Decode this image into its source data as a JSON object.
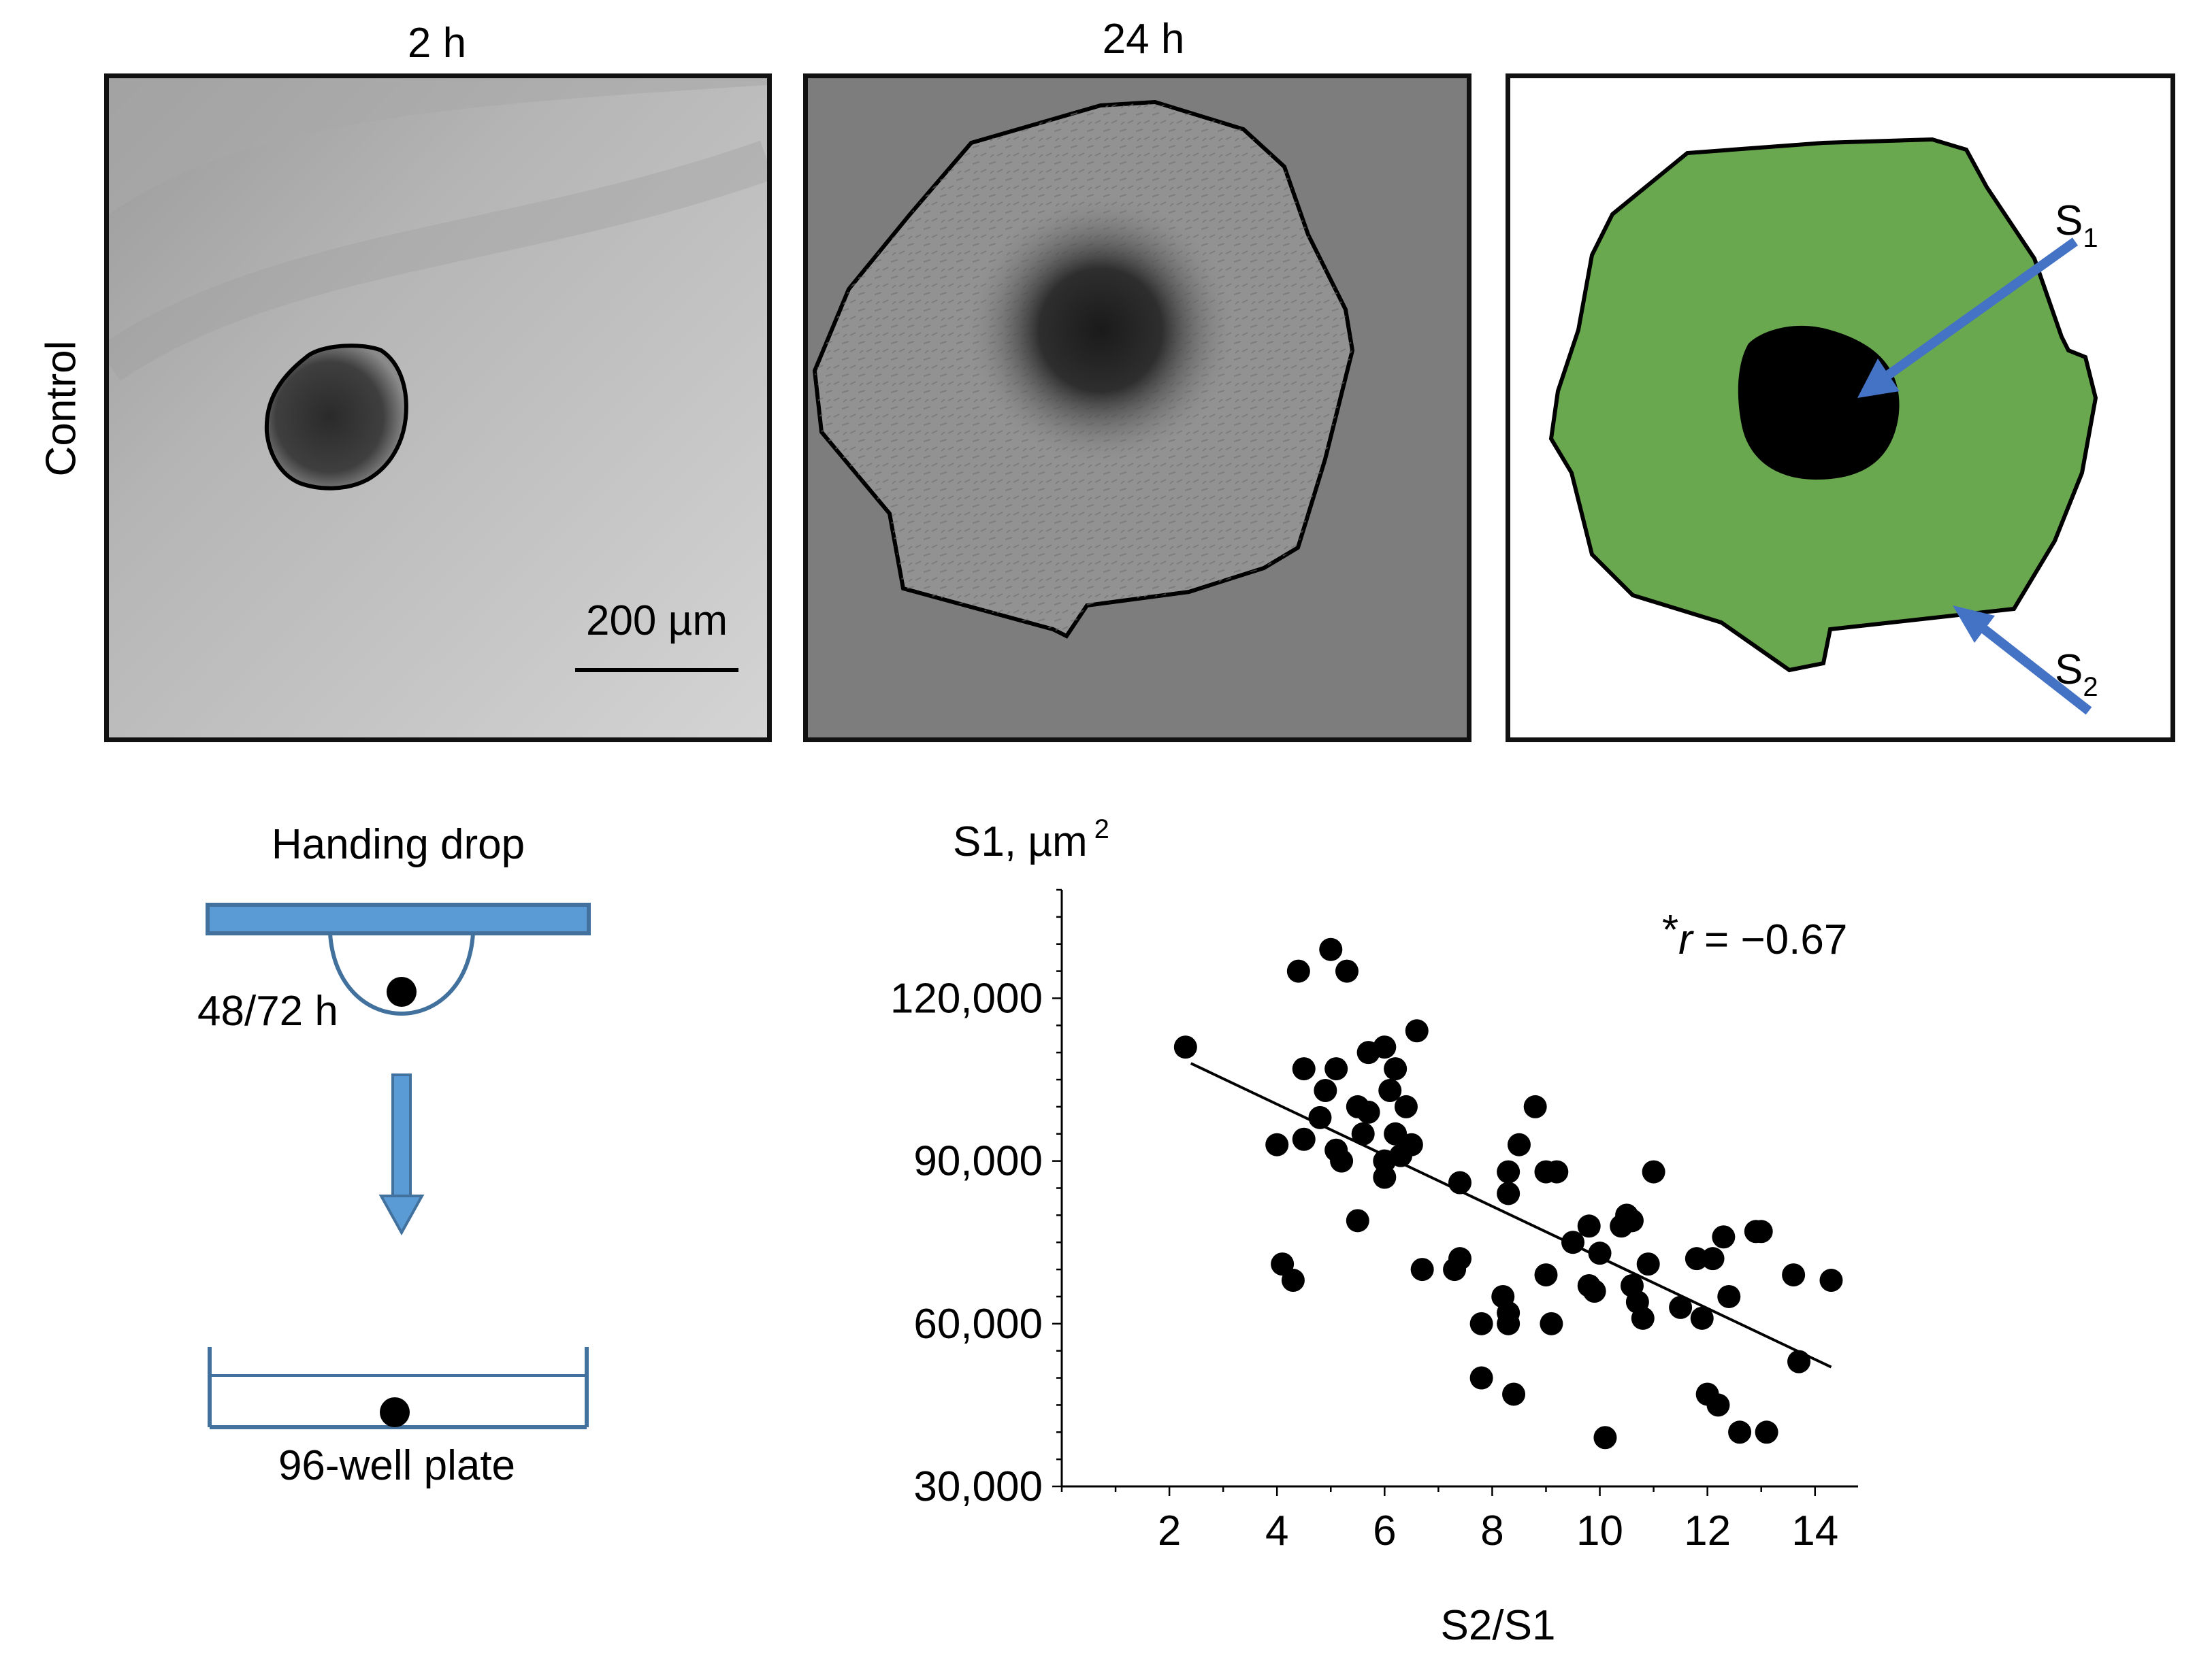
{
  "figure": {
    "panel_titles": [
      "2 h",
      "24 h"
    ],
    "row_label": "Control",
    "scale_bar_label": "200 µm",
    "schematic_labels": {
      "s1": "S",
      "s1_sub": "1",
      "s2": "S",
      "s2_sub": "2"
    },
    "colors": {
      "outgrowth": "#6aa84f",
      "core": "#000000",
      "arrow": "#4472c4"
    }
  },
  "protocol": {
    "top_label": "Handing drop",
    "time_label": "48/72 h",
    "bottom_label": "96-well plate",
    "colors": {
      "plate": "#5b9bd5",
      "outline": "#41719c",
      "arrow": "#5b9bd5"
    }
  },
  "chart_data": {
    "type": "scatter",
    "ylabel_main": "S1, µm",
    "ylabel_sup": "2",
    "xlabel": "S2/S1",
    "annotation_star": "*",
    "annotation_r": "r",
    "annotation_eq": " = −0.67",
    "xlim": [
      0,
      14.8
    ],
    "ylim": [
      30000,
      140000
    ],
    "x_ticks": [
      2,
      4,
      6,
      8,
      10,
      12,
      14
    ],
    "x_tick_labels": [
      "2",
      "4",
      "6",
      "8",
      "10",
      "12",
      "14"
    ],
    "y_ticks": [
      30000,
      60000,
      90000,
      120000
    ],
    "y_tick_labels": [
      "30,000",
      "60,000",
      "90,000",
      "120,000"
    ],
    "trendline": {
      "x": [
        2.4,
        14.3
      ],
      "y": [
        108000,
        52000
      ]
    },
    "points": [
      [
        2.3,
        111000
      ],
      [
        4.0,
        93000
      ],
      [
        4.1,
        71000
      ],
      [
        4.3,
        68000
      ],
      [
        4.4,
        125000
      ],
      [
        4.5,
        107000
      ],
      [
        4.5,
        94000
      ],
      [
        4.8,
        98000
      ],
      [
        4.9,
        103000
      ],
      [
        5.0,
        129000
      ],
      [
        5.1,
        107000
      ],
      [
        5.1,
        92000
      ],
      [
        5.2,
        90000
      ],
      [
        5.3,
        125000
      ],
      [
        5.5,
        100000
      ],
      [
        5.5,
        79000
      ],
      [
        5.6,
        95000
      ],
      [
        5.7,
        99000
      ],
      [
        5.7,
        110000
      ],
      [
        6.0,
        111000
      ],
      [
        6.0,
        90000
      ],
      [
        6.0,
        87000
      ],
      [
        6.1,
        103000
      ],
      [
        6.2,
        107000
      ],
      [
        6.2,
        95000
      ],
      [
        6.3,
        91000
      ],
      [
        6.4,
        100000
      ],
      [
        6.5,
        93000
      ],
      [
        6.6,
        114000
      ],
      [
        6.7,
        70000
      ],
      [
        7.3,
        70000
      ],
      [
        7.4,
        72000
      ],
      [
        7.4,
        86000
      ],
      [
        7.8,
        60000
      ],
      [
        7.8,
        50000
      ],
      [
        8.2,
        65000
      ],
      [
        8.3,
        62000
      ],
      [
        8.3,
        60000
      ],
      [
        8.3,
        88000
      ],
      [
        8.3,
        84000
      ],
      [
        8.4,
        47000
      ],
      [
        8.5,
        93000
      ],
      [
        8.8,
        100000
      ],
      [
        9.0,
        88000
      ],
      [
        9.0,
        69000
      ],
      [
        9.1,
        60000
      ],
      [
        9.2,
        88000
      ],
      [
        9.5,
        75000
      ],
      [
        9.8,
        78000
      ],
      [
        9.8,
        67000
      ],
      [
        9.9,
        66000
      ],
      [
        10.0,
        73000
      ],
      [
        10.1,
        39000
      ],
      [
        10.4,
        78000
      ],
      [
        10.5,
        80000
      ],
      [
        10.6,
        79000
      ],
      [
        10.6,
        67000
      ],
      [
        10.7,
        64000
      ],
      [
        10.8,
        61000
      ],
      [
        10.9,
        71000
      ],
      [
        11.0,
        88000
      ],
      [
        11.5,
        63000
      ],
      [
        11.8,
        72000
      ],
      [
        11.9,
        61000
      ],
      [
        12.0,
        47000
      ],
      [
        12.1,
        72000
      ],
      [
        12.2,
        45000
      ],
      [
        12.3,
        76000
      ],
      [
        12.4,
        65000
      ],
      [
        12.6,
        40000
      ],
      [
        12.9,
        77000
      ],
      [
        13.0,
        77000
      ],
      [
        13.1,
        40000
      ],
      [
        13.6,
        69000
      ],
      [
        13.7,
        53000
      ],
      [
        14.3,
        68000
      ]
    ]
  }
}
